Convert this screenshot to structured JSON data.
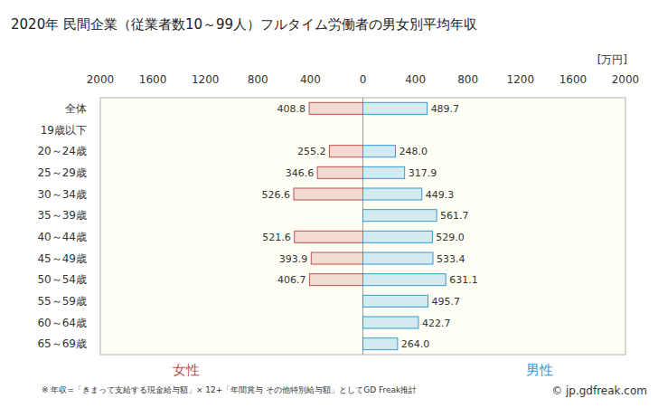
{
  "chart_data": {
    "type": "bar",
    "orientation": "horizontal",
    "title": "2020年 民間企業（従業者数10～99人）フルタイム労働者の男女別平均年収",
    "x_label": "[万円]",
    "annotations": [
      "※ 年収=「きまって支給する現金給与額」× 12+「年間賞与 その他特別給与額」としてGD Freak推計",
      "© jp.gdfreak.com"
    ],
    "categories": [
      "全体",
      "19歳以下",
      "20～24歳",
      "25～29歳",
      "30～34歳",
      "35～39歳",
      "40～44歳",
      "45～49歳",
      "50～54歳",
      "55～59歳",
      "60～64歳",
      "65～69歳"
    ],
    "series": [
      {
        "name": "女性",
        "color": "#c0504d",
        "values": [
          408.8,
          null,
          255.2,
          346.6,
          526.6,
          null,
          521.6,
          393.9,
          406.7,
          null,
          null,
          null
        ],
        "value_labels": [
          "408.8",
          null,
          "255.2",
          "346.6",
          "526.6",
          null,
          "521.6",
          "393.9",
          "406.7",
          null,
          null,
          null
        ]
      },
      {
        "name": "男性",
        "color": "#2e9bd6",
        "values": [
          489.7,
          null,
          248.0,
          317.9,
          449.3,
          561.7,
          529.0,
          533.4,
          631.1,
          495.7,
          422.7,
          264.0
        ],
        "value_labels": [
          "489.7",
          null,
          "248.0",
          "317.9",
          "449.3",
          "561.7",
          "529.0",
          "533.4",
          "631.1",
          "495.7",
          "422.7",
          "264.0"
        ]
      }
    ],
    "xlim": [
      0,
      2000
    ],
    "xticks": [
      0,
      400,
      800,
      1200,
      1600,
      2000
    ],
    "grid": false,
    "legend": "bottom",
    "data_labels": true
  }
}
